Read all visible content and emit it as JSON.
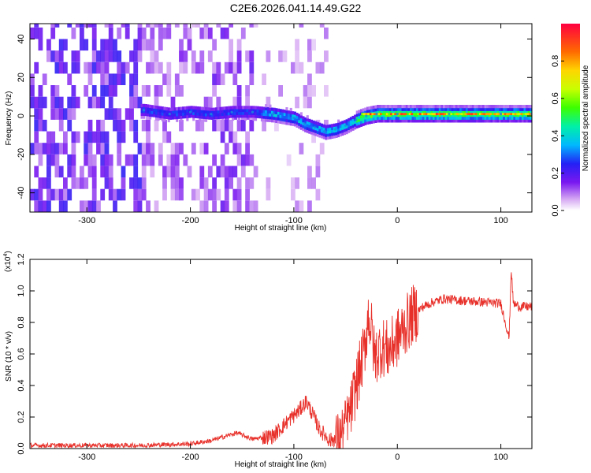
{
  "title": "C2E6.2026.041.14.49.G22",
  "chart_data": [
    {
      "type": "heatmap",
      "title": "C2E6.2026.041.14.49.G22",
      "xlabel": "Height of straight line (km)",
      "ylabel": "Frequency (Hz)",
      "xlim": [
        -355,
        130
      ],
      "ylim": [
        -50,
        48
      ],
      "xticks": [
        -300,
        -200,
        -100,
        0,
        100
      ],
      "yticks": [
        -40,
        -20,
        0,
        20,
        40
      ],
      "ridge": [
        {
          "x": -245,
          "y": 3
        },
        {
          "x": -220,
          "y": 1
        },
        {
          "x": -200,
          "y": 2
        },
        {
          "x": -180,
          "y": 1
        },
        {
          "x": -160,
          "y": 2
        },
        {
          "x": -140,
          "y": 2
        },
        {
          "x": -120,
          "y": 1
        },
        {
          "x": -100,
          "y": -1
        },
        {
          "x": -90,
          "y": -4
        },
        {
          "x": -80,
          "y": -6
        },
        {
          "x": -70,
          "y": -8
        },
        {
          "x": -60,
          "y": -7
        },
        {
          "x": -50,
          "y": -5
        },
        {
          "x": -40,
          "y": -2
        },
        {
          "x": -30,
          "y": 0
        },
        {
          "x": -20,
          "y": 1
        },
        {
          "x": 0,
          "y": 1
        },
        {
          "x": 50,
          "y": 1
        },
        {
          "x": 100,
          "y": 1
        },
        {
          "x": 130,
          "y": 1
        }
      ],
      "colorbar": {
        "label": "Normalized spectral amplitude",
        "ticks": [
          0.0,
          0.2,
          0.4,
          0.6,
          0.8
        ],
        "range": [
          0,
          1
        ]
      }
    },
    {
      "type": "line",
      "xlabel": "Height of straight line (km)",
      "ylabel": "SNR (10 * v/v)",
      "scale_label": "(x10",
      "scale_exponent": "4",
      "scale_close": ")",
      "xlim": [
        -355,
        130
      ],
      "ylim": [
        0,
        1.2
      ],
      "xticks": [
        -300,
        -200,
        -100,
        0,
        100
      ],
      "yticks": [
        "0.0",
        "0.2",
        "0.4",
        "0.6",
        "0.8",
        "1.0",
        "1.2"
      ],
      "series": [
        {
          "name": "SNR",
          "color": "#e8302a",
          "x": [
            -355,
            -300,
            -250,
            -200,
            -180,
            -165,
            -155,
            -140,
            -120,
            -105,
            -95,
            -88,
            -82,
            -75,
            -65,
            -55,
            -45,
            -38,
            -32,
            -28,
            -25,
            -22,
            -15,
            -8,
            0,
            8,
            15,
            25,
            35,
            45,
            60,
            80,
            100,
            108,
            110,
            112,
            118,
            130
          ],
          "y": [
            0.02,
            0.02,
            0.02,
            0.03,
            0.05,
            0.08,
            0.1,
            0.06,
            0.08,
            0.18,
            0.24,
            0.3,
            0.22,
            0.12,
            0.05,
            0.08,
            0.25,
            0.45,
            0.62,
            0.85,
            0.75,
            0.58,
            0.65,
            0.62,
            0.7,
            0.78,
            0.85,
            0.9,
            0.93,
            0.95,
            0.94,
            0.93,
            0.92,
            0.7,
            1.15,
            0.92,
            0.9,
            0.9
          ]
        }
      ]
    }
  ],
  "colors": {
    "line": "#e8302a",
    "axis": "#000000",
    "background": "#ffffff"
  }
}
